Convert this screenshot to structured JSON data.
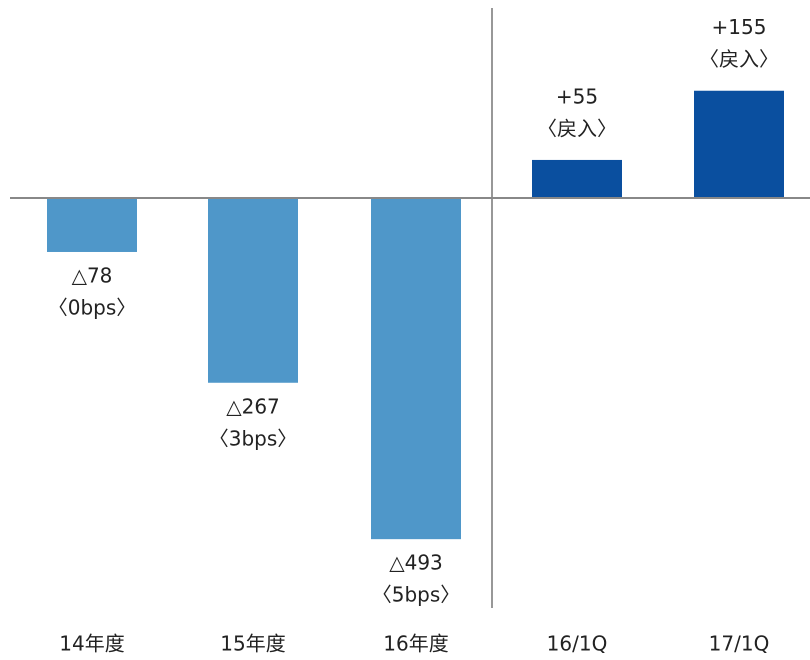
{
  "chart_data": {
    "type": "bar",
    "categories": [
      "14年度",
      "15年度",
      "16年度",
      "16/1Q",
      "17/1Q"
    ],
    "values": [
      -78,
      -267,
      -493,
      55,
      155
    ],
    "value_labels": [
      "△78",
      "△267",
      "△493",
      "+55",
      "+155"
    ],
    "sub_labels": [
      "〈0bps〉",
      "〈3bps〉",
      "〈5bps〉",
      "〈戻入〉",
      "〈戻入〉"
    ],
    "colors": [
      "#4f97c9",
      "#4f97c9",
      "#4f97c9",
      "#0a4f9f",
      "#0a4f9f"
    ]
  }
}
